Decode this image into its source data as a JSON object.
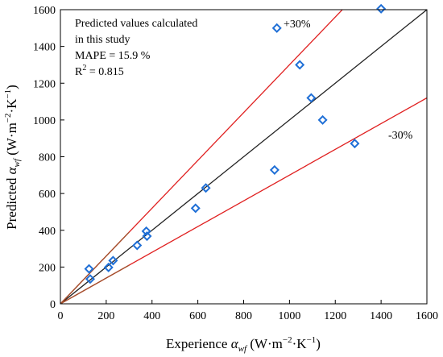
{
  "chart_data": {
    "type": "scatter",
    "xlabel": {
      "main": "Experience ",
      "sym": "α",
      "sub": "wf",
      "unit_pre": " (W·m",
      "sup1": "−2",
      "unit_mid": "·K",
      "sup2": "−1",
      "unit_post": ")"
    },
    "ylabel": {
      "main": "Predicted ",
      "sym": "α",
      "sub": "wf",
      "unit_pre": " (W·m",
      "sup1": "−2",
      "unit_mid": "·K",
      "sup2": "−1",
      "unit_post": ")"
    },
    "xlim": [
      0,
      1600
    ],
    "ylim": [
      0,
      1600
    ],
    "xticks": [
      0,
      200,
      400,
      600,
      800,
      1000,
      1200,
      1400,
      1600
    ],
    "yticks": [
      0,
      200,
      400,
      600,
      800,
      1000,
      1200,
      1400,
      1600
    ],
    "lines": [
      {
        "role": "reference",
        "color": "#222222",
        "slope": 1.0
      },
      {
        "role": "upper-bound",
        "label": "+30%",
        "color": "#e02020",
        "slope": 1.3
      },
      {
        "role": "lower-bound",
        "label": "-30%",
        "color": "#e02020",
        "slope": 0.7
      }
    ],
    "inner_lines": [
      {
        "color": "#a0522d",
        "slope": 1.3,
        "x_end": 300
      },
      {
        "color": "#a0522d",
        "slope": 0.7,
        "x_end": 300
      }
    ],
    "series": [
      {
        "marker": "diamond",
        "color": "#1f6fd6",
        "x": [
          125,
          130,
          210,
          230,
          335,
          375,
          378,
          590,
          635,
          935,
          945,
          1045,
          1095,
          1145,
          1285,
          1400
        ],
        "y": [
          190,
          135,
          198,
          235,
          318,
          395,
          368,
          520,
          630,
          728,
          1500,
          1300,
          1120,
          1000,
          872,
          1605
        ]
      }
    ],
    "annotations": {
      "line1": "Predicted values calculated",
      "line2": "in this study",
      "line3": "MAPE = 15.9 %",
      "line4_pre": "R",
      "line4_sup": "2",
      "line4_post": " = 0.815"
    }
  }
}
